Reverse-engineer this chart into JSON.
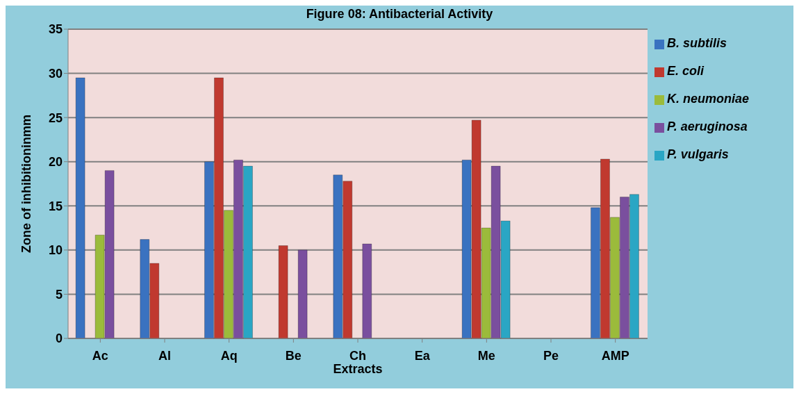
{
  "chart_data": {
    "type": "bar",
    "title": "Figure 08: Antibacterial Activity",
    "xlabel": "Extracts",
    "ylabel": "Zone of inhibitioninmm",
    "categories": [
      "Ac",
      "Al",
      "Aq",
      "Be",
      "Ch",
      "Ea",
      "Me",
      "Pe",
      "AMP"
    ],
    "series": [
      {
        "name": "B. subtilis",
        "color": "#3a72c0",
        "values": [
          29.5,
          11.2,
          20,
          null,
          18.5,
          null,
          20.2,
          null,
          14.8
        ]
      },
      {
        "name": "E. coli",
        "color": "#c0392f",
        "values": [
          null,
          8.5,
          29.5,
          10.5,
          17.8,
          null,
          24.7,
          null,
          20.3
        ]
      },
      {
        "name": "K. neumoniae",
        "color": "#9bbb3b",
        "values": [
          11.7,
          null,
          14.5,
          null,
          null,
          null,
          12.5,
          null,
          13.7
        ]
      },
      {
        "name": "P. aeruginosa",
        "color": "#7a4f9e",
        "values": [
          19,
          null,
          20.2,
          10,
          10.7,
          null,
          19.5,
          null,
          16
        ]
      },
      {
        "name": "P. vulgaris",
        "color": "#2aa6c4",
        "values": [
          null,
          null,
          19.5,
          null,
          null,
          null,
          13.3,
          null,
          16.3
        ]
      }
    ],
    "ylim": [
      0,
      35
    ],
    "yticks": [
      0,
      5,
      10,
      15,
      20,
      25,
      30,
      35
    ],
    "grid": "y",
    "legend": "right"
  }
}
